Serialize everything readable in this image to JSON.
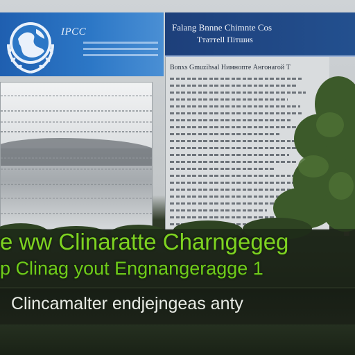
{
  "banner_left": {
    "org_abbr": "ІРСС",
    "logo": "un-globe-laurel-emblem",
    "brand_color": "#2c77c6"
  },
  "banner_right": {
    "title": "Fаlang Bnnne Chimnte Cos",
    "subtitle": "Ттаттеll Пітшиs",
    "brand_color": "#23508f"
  },
  "document": {
    "heading": "Bonxs Gmuzihsal Нимнопте Ангонагой Т"
  },
  "headline": {
    "line1": "e ww Clinaratte Charngegeg",
    "line2": "p Clinag  yout Engnangeragge 1",
    "accent_color": "#7ed321"
  },
  "tagline": {
    "text": "Clincamalter endjejngeas anty"
  }
}
